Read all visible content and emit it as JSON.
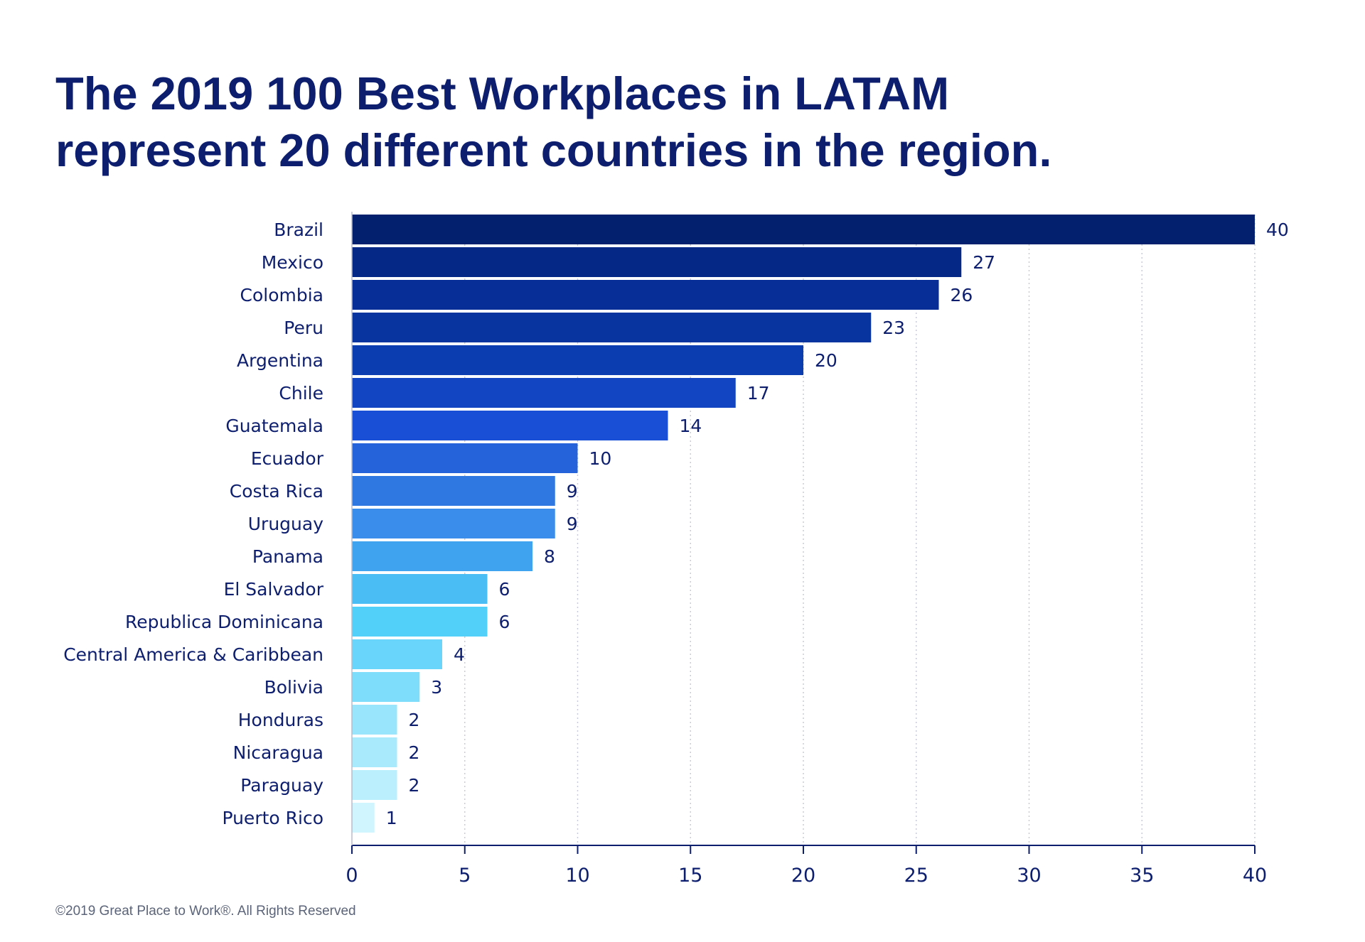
{
  "title_lines": [
    "The 2019 100 Best Workplaces in LATAM",
    "represent 20 different countries in the region."
  ],
  "footer": "©2019 Great Place to Work®. All Rights Reserved",
  "chart_data": {
    "type": "bar",
    "orientation": "horizontal",
    "title": "The 2019 100 Best Workplaces in LATAM represent 20 different countries in the region.",
    "xlabel": "",
    "ylabel": "",
    "xlim": [
      0,
      40
    ],
    "x_ticks": [
      0,
      5,
      10,
      15,
      20,
      25,
      30,
      35,
      40
    ],
    "grid": "vertical dotted",
    "categories": [
      "Brazil",
      "Mexico",
      "Colombia",
      "Peru",
      "Argentina",
      "Chile",
      "Guatemala",
      "Ecuador",
      "Costa Rica",
      "Uruguay",
      "Panama",
      "El Salvador",
      "Republica Dominicana",
      "Central America & Caribbean",
      "Bolivia",
      "Honduras",
      "Nicaragua",
      "Paraguay",
      "Puerto Rico"
    ],
    "values": [
      40,
      27,
      26,
      23,
      20,
      17,
      14,
      10,
      9,
      9,
      8,
      6,
      6,
      4,
      3,
      2,
      2,
      2,
      1
    ],
    "colors": [
      "#03206e",
      "#052887",
      "#062e96",
      "#08349f",
      "#0c3db0",
      "#1145c2",
      "#194fd6",
      "#2563db",
      "#2f78e2",
      "#3a8deb",
      "#40a3ef",
      "#4bbdf5",
      "#52d0fa",
      "#69d5fb",
      "#7dddfb",
      "#98e5fc",
      "#a9eafc",
      "#bbeffd",
      "#d0f5fe"
    ],
    "axis_color": "#0d1e6e",
    "grid_color": "#c9ccd6"
  }
}
